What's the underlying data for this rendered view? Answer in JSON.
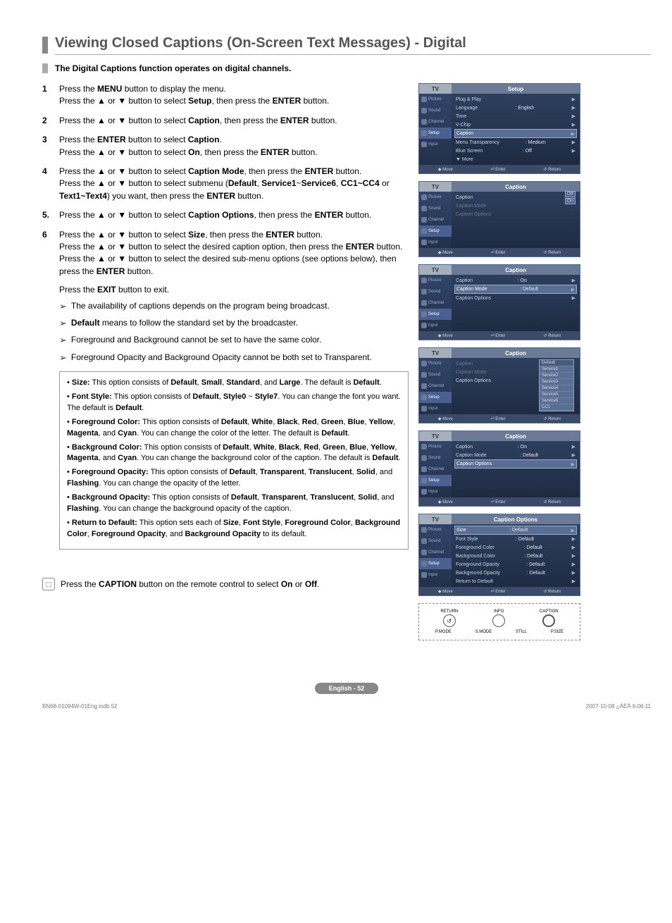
{
  "title": "Viewing Closed Captions (On-Screen Text Messages) - Digital",
  "subtitle": "The Digital Captions function operates on digital channels.",
  "steps": [
    {
      "num": "1",
      "html": "Press the <b>MENU</b> button to display the menu.<br>Press the ▲ or ▼ button to select <b>Setup</b>, then press the <b>ENTER</b> button."
    },
    {
      "num": "2",
      "html": "Press the ▲ or ▼ button to select <b>Caption</b>, then press the <b>ENTER</b> button."
    },
    {
      "num": "3",
      "html": "Press the <b>ENTER</b> button to select <b>Caption</b>.<br>Press the ▲ or ▼ button to select <b>On</b>, then press the <b>ENTER</b> button."
    },
    {
      "num": "4",
      "html": "Press the ▲ or ▼ button to select <b>Caption Mode</b>, then press the <b>ENTER</b> button.<br>Press the ▲ or ▼ button to select submenu (<b>Default</b>, <b>Service1</b>~<b>Service6</b>, <b>CC1~CC4</b> or <b>Text1~Text4</b>) you want, then press the <b>ENTER</b> button."
    },
    {
      "num": "5.",
      "html": "Press the ▲ or ▼ button to select <b>Caption Options</b>, then press the <b>ENTER</b> button."
    },
    {
      "num": "6",
      "html": "Press the ▲ or ▼ button to select <b>Size</b>, then press the <b>ENTER</b> button.<br>Press the ▲ or ▼ button to select the desired caption option, then press the <b>ENTER</b> button.<br>Press the ▲ or ▼ button to select the desired sub-menu options (see options below), then press the <b>ENTER</b> button."
    }
  ],
  "exit_line": "Press the <b>EXIT</b> button to exit.",
  "notes": [
    "The availability of captions depends on the program being broadcast.",
    "<b>Default</b> means to follow the standard set by the broadcaster.",
    "Foreground and Background cannot be set to have the same color.",
    "Foreground Opacity and Background Opacity cannot be both set to Transparent."
  ],
  "options_box": [
    {
      "label": "Size:",
      "body": "This option consists of <b>Default</b>, <b>Small</b>, <b>Standard</b>, and <b>Large</b>. The default is <b>Default</b>."
    },
    {
      "label": "Font Style:",
      "body": "This option consists of <b>Default</b>, <b>Style0</b> ~ <b>Style7</b>. You can change the font you want. The default is <b>Default</b>."
    },
    {
      "label": "Foreground Color:",
      "body": "This option consists of <b>Default</b>, <b>White</b>, <b>Black</b>, <b>Red</b>, <b>Green</b>, <b>Blue</b>, <b>Yellow</b>, <b>Magenta</b>, and <b>Cyan</b>. You can change the color of the letter. The default is <b>Default</b>."
    },
    {
      "label": "Background Color:",
      "body": "This option consists of <b>Default</b>, <b>White</b>, <b>Black</b>, <b>Red</b>, <b>Green</b>, <b>Blue</b>, <b>Yellow</b>, <b>Magenta</b>, and <b>Cyan</b>. You can change the background color of the caption. The default is <b>Default</b>."
    },
    {
      "label": "Foreground Opacity:",
      "body": "This option consists of <b>Default</b>, <b>Transparent</b>, <b>Translucent</b>, <b>Solid</b>, and <b>Flashing</b>. You can change the opacity of the letter."
    },
    {
      "label": "Background Opacity:",
      "body": "This option consists of <b>Default</b>, <b>Transparent</b>, <b>Translucent</b>, <b>Solid</b>, and <b>Flashing</b>. You can change the background opacity of the caption."
    },
    {
      "label": "Return to Default:",
      "body": "This option sets each of <b>Size</b>, <b>Font Style</b>, <b>Foreground Color</b>, <b>Background Color</b>, <b>Foreground Opacity</b>, and <b>Background Opacity</b> to its default."
    }
  ],
  "caption_hint": "Press the <b>CAPTION</b> button on the remote control to select <b>On</b> or <b>Off</b>.",
  "osd_sidebar": [
    "Picture",
    "Sound",
    "Channel",
    "Setup",
    "Input"
  ],
  "osd_footer": {
    "move": "Move",
    "enter": "Enter",
    "return": "Return"
  },
  "osd1": {
    "title": "Setup",
    "tv": "TV",
    "active": 3,
    "rows": [
      {
        "label": "Plug & Play",
        "val": "",
        "arrow": true
      },
      {
        "label": "Language",
        "val": ": English",
        "arrow": true
      },
      {
        "label": "Time",
        "val": "",
        "arrow": true
      },
      {
        "label": "V-Chip",
        "val": "",
        "arrow": true
      },
      {
        "label": "Caption",
        "val": "",
        "hl": true,
        "arrow": true
      },
      {
        "label": "Menu Transparency",
        "val": ": Medium",
        "arrow": true
      },
      {
        "label": "Blue Screen",
        "val": ": Off",
        "arrow": true
      },
      {
        "label": "▼ More",
        "val": "",
        "arrow": false
      }
    ]
  },
  "osd2": {
    "title": "Caption",
    "tv": "TV",
    "active": 3,
    "rows": [
      {
        "label": "Caption",
        "val": "",
        "has_opts": true,
        "opts": [
          "Off",
          "On"
        ]
      },
      {
        "label": "Caption Mode",
        "val": "",
        "dim": true
      },
      {
        "label": "Caption Options",
        "val": "",
        "dim": true
      }
    ]
  },
  "osd3": {
    "title": "Caption",
    "tv": "TV",
    "active": 3,
    "rows": [
      {
        "label": "Caption",
        "val": ": On",
        "arrow": true
      },
      {
        "label": "Caption Mode",
        "val": ": Default",
        "hl": true,
        "arrow": true
      },
      {
        "label": "Caption Options",
        "val": "",
        "arrow": true
      }
    ]
  },
  "osd4": {
    "title": "Caption",
    "tv": "TV",
    "active": 3,
    "rows": [
      {
        "label": "Caption",
        "val": "",
        "dim": true
      },
      {
        "label": "Caption Mode",
        "val": "",
        "dim": true
      },
      {
        "label": "Caption Options",
        "val": ""
      }
    ],
    "submenu": [
      "Default",
      "Service1",
      "Service2",
      "Service3",
      "Service4",
      "Service5",
      "Service6",
      "CC1"
    ]
  },
  "osd5": {
    "title": "Caption",
    "tv": "TV",
    "active": 3,
    "rows": [
      {
        "label": "Caption",
        "val": ": On",
        "arrow": true
      },
      {
        "label": "Caption Mode",
        "val": ": Default",
        "arrow": true
      },
      {
        "label": "Caption Options",
        "val": "",
        "hl": true,
        "arrow": true
      }
    ]
  },
  "osd6": {
    "title": "Caption Options",
    "tv": "TV",
    "active": 3,
    "rows": [
      {
        "label": "Size",
        "val": ": Default",
        "hl": true,
        "arrow": true
      },
      {
        "label": "Font Style",
        "val": ": Default",
        "arrow": true
      },
      {
        "label": "Foreground Color",
        "val": ": Default",
        "arrow": true
      },
      {
        "label": "Background Color",
        "val": ": Default",
        "arrow": true
      },
      {
        "label": "Foreground Opacity",
        "val": ": Default",
        "arrow": true
      },
      {
        "label": "Background Opacity",
        "val": ": Default",
        "arrow": true
      },
      {
        "label": "Return to Default",
        "val": "",
        "arrow": true
      }
    ]
  },
  "remote": {
    "row1": [
      {
        "label": "RETURN",
        "glyph": "↺"
      },
      {
        "label": "INFO",
        "glyph": ""
      },
      {
        "label": "CAPTION",
        "glyph": "",
        "big": true
      }
    ],
    "row2": [
      "P.MODE",
      "S.MODE",
      "STILL",
      "P.SIZE"
    ]
  },
  "page_badge": "English - 52",
  "doc_foot_left": "BN68-01094W-01Eng.indb   52",
  "doc_foot_right": "2007-10-08   ¿ÀÈÄ 6:06:11"
}
